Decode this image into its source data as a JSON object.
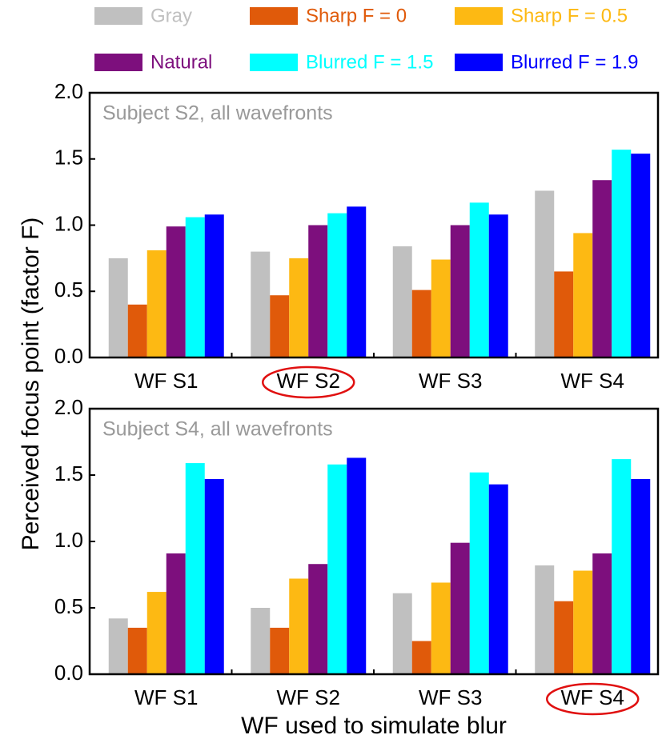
{
  "chart_data": [
    {
      "type": "bar",
      "title": "Subject S2, all wavefronts",
      "ylabel": "Perceived focus point (factor F)",
      "categories": [
        "WF S1",
        "WF S2",
        "WF S3",
        "WF S4"
      ],
      "highlight": 1,
      "ylim": [
        0,
        2
      ],
      "yticks": [
        {
          "value": 0,
          "label": "0.0"
        },
        0.5,
        {
          "value": 1,
          "label": "1.0"
        },
        1.5,
        {
          "value": 2,
          "label": "2.0"
        }
      ],
      "series": [
        {
          "name": "Gray",
          "color": "#c0c0c0",
          "values": [
            0.75,
            0.8,
            0.84,
            1.26
          ]
        },
        {
          "name": "Sharp F = 0",
          "color": "#e05a0a",
          "values": [
            0.4,
            0.47,
            0.51,
            0.65
          ]
        },
        {
          "name": "Sharp F = 0.5",
          "color": "#fdb913",
          "values": [
            0.81,
            0.75,
            0.74,
            0.94
          ]
        },
        {
          "name": "Natural",
          "color": "#7d0f7d",
          "values": [
            0.99,
            1.0,
            1.0,
            1.34
          ]
        },
        {
          "name": "Blurred F = 1.5",
          "color": "#00ffff",
          "values": [
            1.06,
            1.09,
            1.17,
            1.57
          ]
        },
        {
          "name": "Blurred F = 1.9",
          "color": "#0000ff",
          "values": [
            1.08,
            1.14,
            1.08,
            1.54
          ]
        }
      ]
    },
    {
      "type": "bar",
      "title": "Subject S4, all wavefronts",
      "xlabel": "WF used to simulate blur",
      "categories": [
        "WF S1",
        "WF S2",
        "WF S3",
        "WF S4"
      ],
      "highlight": 3,
      "ylim": [
        0,
        2
      ],
      "yticks": [
        {
          "value": 0,
          "label": "0.0"
        },
        0.5,
        {
          "value": 1,
          "label": "1.0"
        },
        1.5,
        {
          "value": 2,
          "label": "2.0"
        }
      ],
      "series": [
        {
          "values": [
            0.42,
            0.5,
            0.61,
            0.82
          ]
        },
        {
          "values": [
            0.35,
            0.35,
            0.25,
            0.55
          ]
        },
        {
          "values": [
            0.62,
            0.72,
            0.69,
            0.78
          ]
        },
        {
          "values": [
            0.91,
            0.83,
            0.99,
            0.91
          ]
        },
        {
          "values": [
            1.59,
            1.58,
            1.52,
            1.62
          ]
        },
        {
          "values": [
            1.47,
            1.63,
            1.43,
            1.47
          ]
        }
      ]
    }
  ]
}
